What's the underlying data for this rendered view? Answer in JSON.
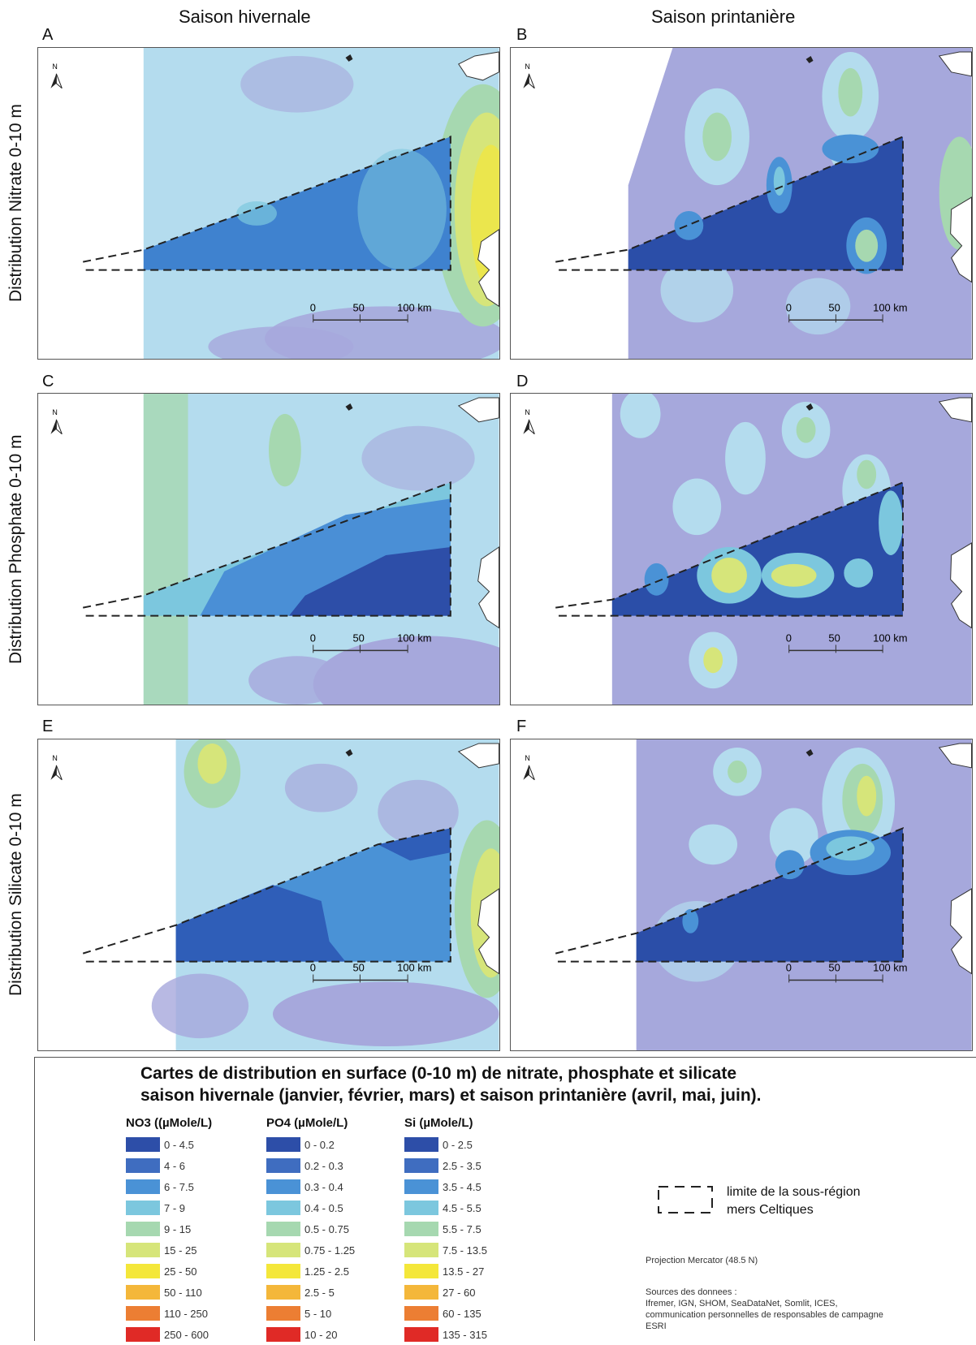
{
  "column_titles": [
    "Saison hivernale",
    "Saison printanière"
  ],
  "row_titles": [
    "Distribution Nitrate 0-10 m",
    "Distribution Phosphate 0-10 m",
    "Distribution Silicate 0-10 m"
  ],
  "panels": [
    {
      "letter": "A",
      "season": "hiver",
      "nutrient": "nitrate",
      "zone_color": "#3f82cf"
    },
    {
      "letter": "B",
      "season": "printemps",
      "nutrient": "nitrate",
      "zone_color": "#2b4ea8"
    },
    {
      "letter": "C",
      "season": "hiver",
      "nutrient": "phosphate",
      "zone_color": "#4a8fd6"
    },
    {
      "letter": "D",
      "season": "printemps",
      "nutrient": "phosphate",
      "zone_color": "#2b4ea8"
    },
    {
      "letter": "E",
      "season": "hiver",
      "nutrient": "silicate",
      "zone_color": "#2f5eb8"
    },
    {
      "letter": "F",
      "season": "printemps",
      "nutrient": "silicate",
      "zone_color": "#2b4ea8"
    }
  ],
  "north_label": "N",
  "scale_bar": {
    "ticks": [
      "0",
      "50",
      "100 km"
    ]
  },
  "legend": {
    "title_line1": "Cartes de distribution en surface (0-10 m) de nitrate, phosphate et silicate",
    "title_line2": "saison hivernale (janvier, février, mars) et saison printanière (avril, mai, juin).",
    "colors": [
      "#2d4ea8",
      "#3f6dc0",
      "#4a92d6",
      "#7cc7de",
      "#a6d8b0",
      "#d6e57a",
      "#f4e73a",
      "#f4b73a",
      "#ec7e33",
      "#e02a26"
    ],
    "columns": [
      {
        "header": "NO3 ((µMole/L)",
        "classes": [
          "0 - 4.5",
          "4 - 6",
          "6 - 7.5",
          "7 - 9",
          "9 - 15",
          "15 - 25",
          "25 - 50",
          "50 - 110",
          "110 - 250",
          "250 - 600"
        ]
      },
      {
        "header": "PO4 (µMole/L)",
        "classes": [
          "0 - 0.2",
          "0.2 - 0.3",
          "0.3 - 0.4",
          "0.4 - 0.5",
          "0.5 - 0.75",
          "0.75 - 1.25",
          "1.25 - 2.5",
          "2.5 - 5",
          "5 - 10",
          "10 - 20"
        ]
      },
      {
        "header": "Si (µMole/L)",
        "classes": [
          "0 - 2.5",
          "2.5 - 3.5",
          "3.5 - 4.5",
          "4.5 - 5.5",
          "5.5 - 7.5",
          "7.5 - 13.5",
          "13.5 - 27",
          "27 - 60",
          "60 - 135",
          "135 - 315"
        ]
      }
    ],
    "limit_label_line1": "limite de la sous-région",
    "limit_label_line2": "mers Celtiques",
    "projection": "Projection Mercator (48.5 N)",
    "sources_title": "Sources des donnees :",
    "sources_line1": "Ifremer, IGN, SHOM, SeaDataNet, Somlit, ICES,",
    "sources_line2": "communication personnelles de responsables de campagne",
    "sources_line3": "ESRI"
  }
}
